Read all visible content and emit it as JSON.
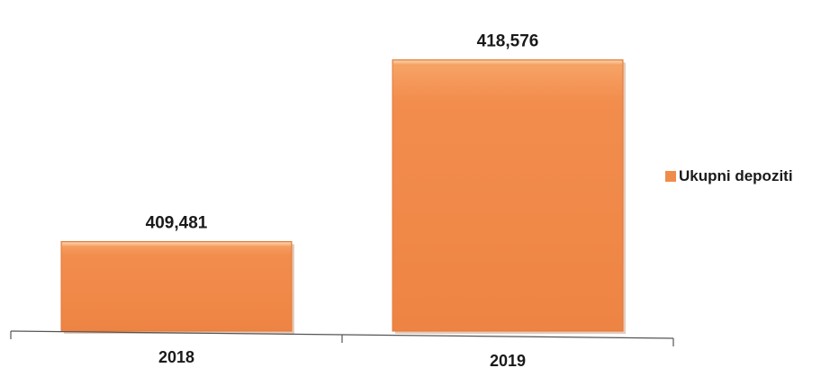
{
  "chart_data": {
    "type": "bar",
    "categories": [
      "2018",
      "2019"
    ],
    "series": [
      {
        "name": "Ukupni depoziti",
        "values": [
          409481,
          418576
        ],
        "value_labels": [
          "409,481",
          "418,576"
        ]
      }
    ],
    "title": "",
    "xlabel": "",
    "ylabel": "",
    "ylim": [
      405000,
      419500
    ],
    "grid": false,
    "legend_position": "right",
    "bar_color": "#f08c4a",
    "bar_highlight_color": "#f8b07a",
    "bar_shadow_color": "#b86a3a"
  }
}
